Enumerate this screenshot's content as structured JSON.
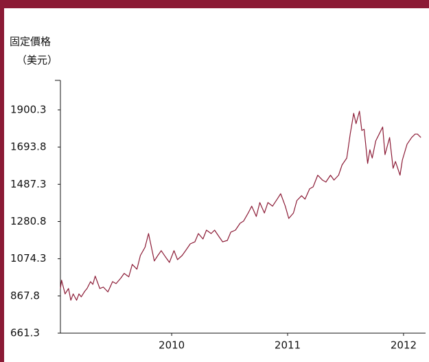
{
  "chart_data": {
    "type": "line",
    "ylabel": [
      "固定價格",
      "（美元）"
    ],
    "x": [
      2009.04,
      2009.05,
      2009.08,
      2009.11,
      2009.13,
      2009.15,
      2009.18,
      2009.2,
      2009.22,
      2009.25,
      2009.27,
      2009.3,
      2009.32,
      2009.34,
      2009.38,
      2009.41,
      2009.45,
      2009.49,
      2009.52,
      2009.56,
      2009.59,
      2009.63,
      2009.66,
      2009.7,
      2009.73,
      2009.77,
      2009.8,
      2009.85,
      2009.88,
      2009.91,
      2009.95,
      2009.98,
      2010.02,
      2010.05,
      2010.09,
      2010.12,
      2010.16,
      2010.2,
      2010.23,
      2010.27,
      2010.3,
      2010.34,
      2010.37,
      2010.41,
      2010.44,
      2010.48,
      2010.51,
      2010.55,
      2010.59,
      2010.62,
      2010.66,
      2010.69,
      2010.73,
      2010.76,
      2010.8,
      2010.83,
      2010.87,
      2010.91,
      2010.94,
      2010.98,
      2011.01,
      2011.05,
      2011.08,
      2011.12,
      2011.15,
      2011.19,
      2011.22,
      2011.26,
      2011.3,
      2011.33,
      2011.37,
      2011.4,
      2011.44,
      2011.47,
      2011.51,
      2011.54,
      2011.57,
      2011.59,
      2011.62,
      2011.64,
      2011.66,
      2011.69,
      2011.71,
      2011.73,
      2011.76,
      2011.79,
      2011.82,
      2011.84,
      2011.88,
      2011.91,
      2011.93,
      2011.97,
      2011.99,
      2012.03,
      2012.07,
      2012.1,
      2012.12,
      2012.15
    ],
    "series": [
      {
        "color": "#8b1a35",
        "values": [
          909,
          955,
          879,
          909,
          844,
          879,
          844,
          879,
          863,
          894,
          909,
          947,
          932,
          978,
          909,
          917,
          890,
          947,
          936,
          966,
          993,
          974,
          1043,
          1016,
          1092,
          1138,
          1214,
          1062,
          1092,
          1119,
          1081,
          1054,
          1119,
          1069,
          1092,
          1119,
          1157,
          1168,
          1214,
          1184,
          1233,
          1214,
          1233,
          1195,
          1168,
          1176,
          1222,
          1233,
          1271,
          1283,
          1328,
          1366,
          1309,
          1386,
          1328,
          1386,
          1366,
          1405,
          1435,
          1366,
          1298,
          1328,
          1397,
          1424,
          1405,
          1462,
          1473,
          1538,
          1511,
          1500,
          1538,
          1511,
          1538,
          1595,
          1633,
          1766,
          1881,
          1824,
          1893,
          1786,
          1793,
          1603,
          1679,
          1633,
          1728,
          1766,
          1805,
          1652,
          1747,
          1576,
          1614,
          1538,
          1622,
          1709,
          1747,
          1766,
          1766,
          1747
        ]
      }
    ],
    "xlim": [
      2009.04,
      2012.19
    ],
    "xticks": [
      2010,
      2011,
      2012
    ],
    "ylim": [
      661.3,
      2064
    ],
    "yticks": [
      661.3,
      867.8,
      1074.3,
      1280.8,
      1487.3,
      1693.8,
      1900.3
    ]
  }
}
